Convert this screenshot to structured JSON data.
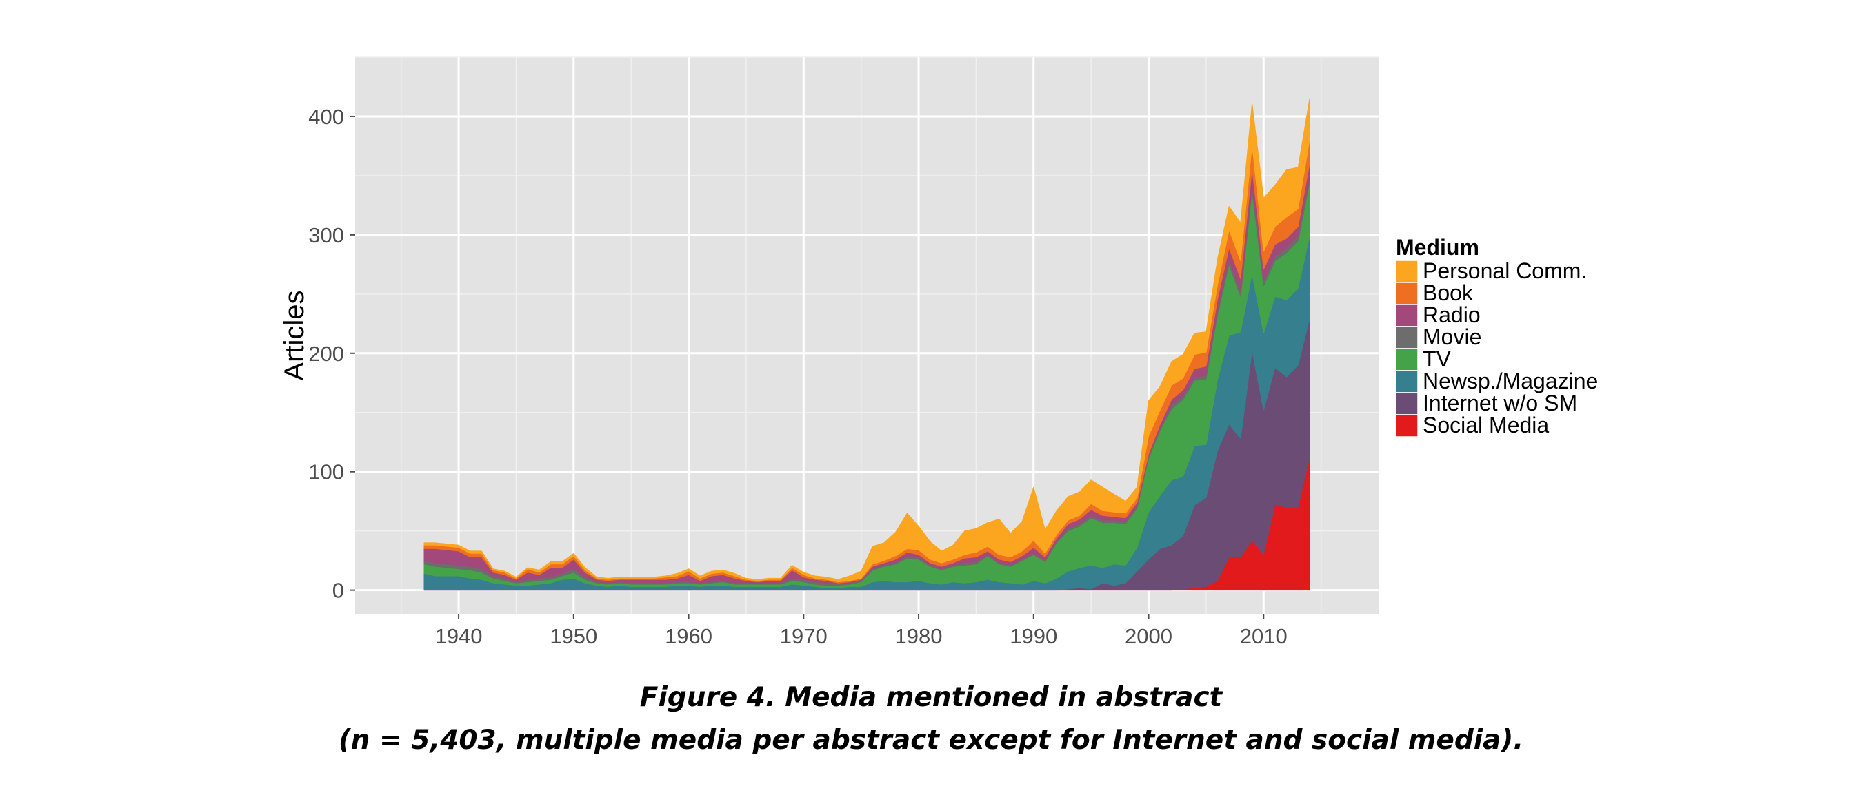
{
  "caption": {
    "line1": "Figure 4. Media mentioned in abstract",
    "line2": "(n = 5,403, multiple media per abstract except for Internet and social media)."
  },
  "chart_data": {
    "type": "area",
    "stacked": true,
    "xlabel": "",
    "ylabel": "Articles",
    "xlim": [
      1931,
      2020
    ],
    "ylim": [
      -20,
      450
    ],
    "x_ticks": [
      1940,
      1950,
      1960,
      1970,
      1980,
      1990,
      2000,
      2010
    ],
    "y_ticks": [
      0,
      100,
      200,
      300,
      400
    ],
    "grid": true,
    "legend": {
      "title": "Medium",
      "position": "right"
    },
    "x": [
      1937,
      1938,
      1940,
      1941,
      1942,
      1943,
      1944,
      1945,
      1946,
      1947,
      1948,
      1949,
      1950,
      1951,
      1952,
      1953,
      1954,
      1955,
      1956,
      1957,
      1958,
      1959,
      1960,
      1961,
      1962,
      1963,
      1964,
      1965,
      1966,
      1967,
      1968,
      1969,
      1970,
      1971,
      1972,
      1973,
      1974,
      1975,
      1976,
      1977,
      1978,
      1979,
      1980,
      1981,
      1982,
      1983,
      1984,
      1985,
      1986,
      1987,
      1988,
      1989,
      1990,
      1991,
      1992,
      1993,
      1994,
      1995,
      1996,
      1997,
      1998,
      1999,
      2000,
      2001,
      2002,
      2003,
      2004,
      2005,
      2006,
      2007,
      2008,
      2009,
      2010,
      2011,
      2012,
      2013,
      2014
    ],
    "series": [
      {
        "name": "Social Media",
        "color": "#e31a1c",
        "values": [
          0,
          0,
          0,
          0,
          0,
          0,
          0,
          0,
          0,
          0,
          0,
          0,
          0,
          0,
          0,
          0,
          0,
          0,
          0,
          0,
          0,
          0,
          0,
          0,
          0,
          0,
          0,
          0,
          0,
          0,
          0,
          0,
          0,
          0,
          0,
          0,
          0,
          0,
          0,
          0,
          0,
          0,
          0,
          0,
          0,
          0,
          0,
          0,
          0,
          0,
          0,
          0,
          0,
          0,
          0,
          0,
          0,
          0,
          0,
          0,
          0,
          0,
          0,
          0,
          0,
          1,
          2,
          3,
          8,
          28,
          28,
          42,
          30,
          72,
          70,
          70,
          112
        ]
      },
      {
        "name": "Internet w/o SM",
        "color": "#6a4c74",
        "values": [
          0,
          0,
          0,
          0,
          0,
          0,
          0,
          0,
          0,
          0,
          0,
          0,
          0,
          0,
          0,
          0,
          0,
          0,
          0,
          0,
          0,
          0,
          0,
          0,
          0,
          0,
          0,
          0,
          0,
          0,
          0,
          0,
          0,
          0,
          0,
          0,
          0,
          0,
          0,
          0,
          0,
          0,
          0,
          0,
          0,
          0,
          0,
          0,
          0,
          0,
          0,
          0,
          0,
          0,
          0,
          1,
          2,
          1,
          6,
          4,
          6,
          16,
          26,
          35,
          38,
          45,
          70,
          75,
          110,
          112,
          100,
          160,
          122,
          116,
          110,
          120,
          117
        ]
      },
      {
        "name": "Newsp./Magazine",
        "color": "#357f8f",
        "values": [
          14,
          12,
          12,
          10,
          9,
          6,
          5,
          4,
          4,
          5,
          6,
          9,
          10,
          6,
          4,
          3,
          4,
          3,
          3,
          3,
          3,
          4,
          4,
          3,
          4,
          4,
          3,
          3,
          3,
          3,
          3,
          5,
          4,
          3,
          2,
          2,
          3,
          3,
          7,
          8,
          7,
          7,
          8,
          6,
          5,
          7,
          6,
          7,
          9,
          7,
          6,
          5,
          8,
          6,
          10,
          15,
          17,
          20,
          13,
          18,
          15,
          20,
          40,
          45,
          55,
          50,
          50,
          45,
          60,
          75,
          90,
          65,
          65,
          60,
          65,
          65,
          70
        ]
      },
      {
        "name": "TV",
        "color": "#44a348",
        "values": [
          8,
          8,
          6,
          7,
          6,
          4,
          3,
          2,
          3,
          3,
          3,
          3,
          5,
          3,
          2,
          2,
          2,
          2,
          2,
          2,
          2,
          2,
          2,
          2,
          2,
          3,
          2,
          2,
          2,
          2,
          2,
          3,
          3,
          2,
          2,
          2,
          2,
          4,
          10,
          12,
          15,
          20,
          18,
          14,
          12,
          13,
          15,
          15,
          20,
          15,
          14,
          20,
          22,
          18,
          30,
          34,
          35,
          40,
          38,
          35,
          35,
          33,
          45,
          55,
          60,
          65,
          55,
          55,
          55,
          60,
          30,
          70,
          40,
          30,
          40,
          40,
          45
        ]
      },
      {
        "name": "Movie",
        "color": "#6d6d6d",
        "values": [
          3,
          3,
          3,
          3,
          3,
          2,
          2,
          1,
          2,
          2,
          2,
          2,
          3,
          2,
          1,
          1,
          1,
          1,
          1,
          1,
          1,
          1,
          1,
          1,
          1,
          1,
          1,
          1,
          1,
          1,
          1,
          2,
          2,
          2,
          2,
          1,
          1,
          1,
          1,
          1,
          1,
          2,
          2,
          1,
          1,
          1,
          2,
          2,
          1,
          1,
          1,
          1,
          1,
          1,
          1,
          2,
          2,
          2,
          2,
          2,
          2,
          2,
          2,
          2,
          3,
          3,
          3,
          3,
          3,
          4,
          3,
          4,
          4,
          4,
          4,
          4,
          4
        ]
      },
      {
        "name": "Radio",
        "color": "#a3487a",
        "values": [
          10,
          12,
          12,
          8,
          10,
          3,
          3,
          2,
          6,
          3,
          8,
          5,
          8,
          4,
          2,
          2,
          2,
          3,
          3,
          3,
          3,
          3,
          6,
          2,
          5,
          5,
          4,
          2,
          1,
          2,
          2,
          7,
          2,
          2,
          2,
          1,
          1,
          1,
          2,
          2,
          3,
          3,
          2,
          2,
          2,
          2,
          4,
          4,
          3,
          3,
          3,
          3,
          5,
          3,
          3,
          4,
          4,
          5,
          4,
          3,
          3,
          3,
          2,
          3,
          5,
          5,
          7,
          8,
          10,
          10,
          12,
          15,
          10,
          10,
          8,
          8,
          12
        ]
      },
      {
        "name": "Book",
        "color": "#ee6e22",
        "values": [
          3,
          3,
          3,
          3,
          3,
          2,
          2,
          1,
          3,
          2,
          3,
          3,
          3,
          2,
          1,
          1,
          1,
          1,
          1,
          1,
          2,
          2,
          3,
          2,
          2,
          2,
          2,
          1,
          1,
          1,
          1,
          2,
          2,
          1,
          1,
          1,
          1,
          1,
          2,
          2,
          3,
          3,
          4,
          3,
          3,
          3,
          3,
          4,
          4,
          4,
          4,
          4,
          6,
          3,
          3,
          3,
          3,
          5,
          4,
          4,
          4,
          4,
          15,
          12,
          12,
          10,
          12,
          12,
          12,
          15,
          15,
          20,
          15,
          15,
          18,
          15,
          20
        ]
      },
      {
        "name": "Personal Comm.",
        "color": "#fca620",
        "values": [
          2,
          2,
          2,
          2,
          2,
          1,
          1,
          1,
          1,
          2,
          2,
          2,
          2,
          2,
          1,
          1,
          1,
          1,
          1,
          1,
          1,
          2,
          2,
          2,
          2,
          2,
          2,
          1,
          1,
          1,
          1,
          2,
          2,
          2,
          2,
          2,
          4,
          6,
          15,
          15,
          20,
          30,
          20,
          15,
          10,
          12,
          20,
          20,
          20,
          30,
          20,
          25,
          45,
          20,
          20,
          20,
          20,
          20,
          20,
          15,
          10,
          9,
          30,
          20,
          20,
          20,
          18,
          17,
          22,
          20,
          32,
          35,
          45,
          35,
          40,
          35,
          35
        ]
      }
    ]
  }
}
